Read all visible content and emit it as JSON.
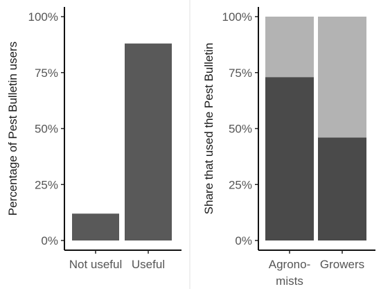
{
  "chart_data": [
    {
      "type": "bar",
      "xlabel": "",
      "ylabel": "Percentage of Pest Bulletin users",
      "ylim": [
        0,
        100
      ],
      "y_ticks": [
        "0%",
        "25%",
        "50%",
        "75%",
        "100%"
      ],
      "categories": [
        "Not useful",
        "Useful"
      ],
      "values": [
        12,
        88
      ],
      "colors": {
        "bar": "#595959"
      },
      "grid": false,
      "legend": "none"
    },
    {
      "type": "bar",
      "stacked": true,
      "xlabel": "",
      "ylabel": "Share that used the Pest Bulletin",
      "ylim": [
        0,
        100
      ],
      "y_ticks": [
        "0%",
        "25%",
        "50%",
        "75%",
        "100%"
      ],
      "categories": [
        [
          "Agrono-",
          "mists"
        ],
        [
          "Growers"
        ]
      ],
      "series": [
        {
          "values": [
            73,
            46
          ],
          "color": "#4a4a4a"
        },
        {
          "values": [
            27,
            54
          ],
          "color": "#b3b3b3"
        }
      ],
      "grid": false,
      "legend": "none"
    }
  ]
}
